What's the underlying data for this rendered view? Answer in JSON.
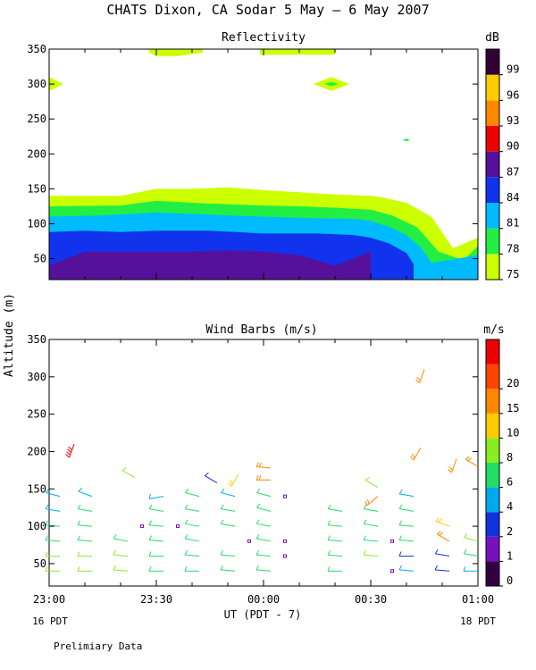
{
  "title": "CHATS Dixon, CA  Sodar    5 May –  6 May 2007",
  "footer_note": "Prelimiary Data",
  "ylabel": "Altitude (m)",
  "xlabel": "UT  (PDT - 7)",
  "x_ticks": [
    "23:00",
    "23:30",
    "00:00",
    "00:30",
    "01:00"
  ],
  "x_start_note": "16 PDT",
  "x_end_note": "18 PDT",
  "chart_data": [
    {
      "type": "heatmap",
      "title": "Reflectivity",
      "x_range_minutes": [
        0,
        120
      ],
      "ylim": [
        20,
        350
      ],
      "y_ticks": [
        50,
        100,
        150,
        200,
        250,
        300,
        350
      ],
      "colorbar": {
        "unit": "dB",
        "levels": [
          75,
          78,
          81,
          84,
          87,
          90,
          93,
          96,
          99
        ],
        "colors": [
          "#ccff00",
          "#22ee44",
          "#00bbff",
          "#1133ee",
          "#551199",
          "#ee0000",
          "#ff8800",
          "#ffcc00",
          "#330033"
        ]
      },
      "layers": [
        {
          "value": 75,
          "points": [
            [
              0,
              140
            ],
            [
              20,
              140
            ],
            [
              30,
              150
            ],
            [
              40,
              150
            ],
            [
              50,
              152
            ],
            [
              60,
              148
            ],
            [
              70,
              145
            ],
            [
              80,
              142
            ],
            [
              90,
              140
            ],
            [
              93,
              138
            ],
            [
              100,
              130
            ],
            [
              107,
              110
            ],
            [
              113,
              65
            ],
            [
              120,
              80
            ],
            [
              120,
              20
            ],
            [
              0,
              20
            ]
          ]
        },
        {
          "value": 78,
          "points": [
            [
              0,
              125
            ],
            [
              20,
              126
            ],
            [
              30,
              133
            ],
            [
              40,
              130
            ],
            [
              50,
              128
            ],
            [
              60,
              126
            ],
            [
              70,
              125
            ],
            [
              80,
              123
            ],
            [
              90,
              120
            ],
            [
              96,
              112
            ],
            [
              103,
              95
            ],
            [
              109,
              60
            ],
            [
              116,
              48
            ],
            [
              120,
              68
            ],
            [
              120,
              20
            ],
            [
              0,
              20
            ]
          ]
        },
        {
          "value": 81,
          "points": [
            [
              0,
              110
            ],
            [
              15,
              112
            ],
            [
              30,
              116
            ],
            [
              45,
              113
            ],
            [
              60,
              110
            ],
            [
              75,
              108
            ],
            [
              85,
              107
            ],
            [
              90,
              104
            ],
            [
              95,
              96
            ],
            [
              100,
              84
            ],
            [
              104,
              66
            ],
            [
              107,
              44
            ],
            [
              120,
              55
            ],
            [
              120,
              20
            ],
            [
              0,
              20
            ]
          ]
        },
        {
          "value": 84,
          "points": [
            [
              0,
              88
            ],
            [
              10,
              90
            ],
            [
              20,
              88
            ],
            [
              30,
              90
            ],
            [
              45,
              90
            ],
            [
              60,
              86
            ],
            [
              75,
              86
            ],
            [
              85,
              84
            ],
            [
              90,
              80
            ],
            [
              95,
              72
            ],
            [
              100,
              58
            ],
            [
              102,
              42
            ],
            [
              102,
              20
            ],
            [
              0,
              20
            ]
          ]
        },
        {
          "value": 87,
          "points": [
            [
              0,
              40
            ],
            [
              10,
              60
            ],
            [
              20,
              60
            ],
            [
              30,
              60
            ],
            [
              40,
              60
            ],
            [
              50,
              62
            ],
            [
              60,
              60
            ],
            [
              70,
              55
            ],
            [
              80,
              40
            ],
            [
              90,
              60
            ],
            [
              90,
              20
            ],
            [
              0,
              20
            ]
          ]
        },
        {
          "value": 75,
          "points": [
            [
              28,
              345
            ],
            [
              30,
              340
            ],
            [
              36,
              340
            ],
            [
              43,
              345
            ],
            [
              43,
              350
            ],
            [
              28,
              350
            ]
          ]
        },
        {
          "value": 75,
          "points": [
            [
              59,
              350
            ],
            [
              80,
              350
            ],
            [
              80,
              342
            ],
            [
              59,
              342
            ]
          ]
        },
        {
          "value": 75,
          "points": [
            [
              0,
              310
            ],
            [
              4,
              300
            ],
            [
              0,
              290
            ]
          ]
        },
        {
          "value": 75,
          "points": [
            [
              74,
              300
            ],
            [
              79,
              310
            ],
            [
              84,
              300
            ],
            [
              79,
              290
            ]
          ]
        },
        {
          "value": 78,
          "points": [
            [
              77,
              300
            ],
            [
              79,
              303
            ],
            [
              81,
              300
            ],
            [
              79,
              297
            ]
          ]
        },
        {
          "value": 78,
          "points": [
            [
              99,
              220
            ],
            [
              100,
              222
            ],
            [
              101,
              220
            ],
            [
              100,
              218
            ]
          ]
        }
      ]
    },
    {
      "type": "wind_barbs",
      "title": "Wind Barbs (m/s)",
      "x_range_minutes": [
        0,
        120
      ],
      "ylim": [
        20,
        350
      ],
      "y_ticks": [
        50,
        100,
        150,
        200,
        250,
        300,
        350
      ],
      "colorbar": {
        "unit": "m/s",
        "levels": [
          0,
          1,
          2,
          4,
          6,
          8,
          10,
          15,
          20
        ],
        "colors": [
          "#330044",
          "#7711bb",
          "#1133dd",
          "#00aaee",
          "#22dd66",
          "#88ee22",
          "#ffcc00",
          "#ff8800",
          "#ff4400",
          "#ee0000"
        ]
      },
      "barbs": [
        {
          "t": 3,
          "z": 40,
          "speed": 6,
          "dir": 270
        },
        {
          "t": 3,
          "z": 60,
          "speed": 6,
          "dir": 270
        },
        {
          "t": 3,
          "z": 80,
          "speed": 5,
          "dir": 275
        },
        {
          "t": 3,
          "z": 100,
          "speed": 4,
          "dir": 275
        },
        {
          "t": 3,
          "z": 120,
          "speed": 2,
          "dir": 280
        },
        {
          "t": 3,
          "z": 140,
          "speed": 3,
          "dir": 285
        },
        {
          "t": 12,
          "z": 40,
          "speed": 6,
          "dir": 270
        },
        {
          "t": 12,
          "z": 60,
          "speed": 6,
          "dir": 270
        },
        {
          "t": 12,
          "z": 80,
          "speed": 5,
          "dir": 275
        },
        {
          "t": 12,
          "z": 100,
          "speed": 4,
          "dir": 275
        },
        {
          "t": 12,
          "z": 120,
          "speed": 5,
          "dir": 280
        },
        {
          "t": 12,
          "z": 140,
          "speed": 3,
          "dir": 290
        },
        {
          "t": 7,
          "z": 210,
          "speed": 22,
          "dir": 200
        },
        {
          "t": 22,
          "z": 40,
          "speed": 6,
          "dir": 275
        },
        {
          "t": 22,
          "z": 60,
          "speed": 6,
          "dir": 275
        },
        {
          "t": 22,
          "z": 80,
          "speed": 4,
          "dir": 280
        },
        {
          "t": 24,
          "z": 165,
          "speed": 7,
          "dir": 300
        },
        {
          "t": 32,
          "z": 40,
          "speed": 5,
          "dir": 270
        },
        {
          "t": 32,
          "z": 60,
          "speed": 5,
          "dir": 270
        },
        {
          "t": 32,
          "z": 80,
          "speed": 4,
          "dir": 275
        },
        {
          "t": 32,
          "z": 100,
          "speed": 5,
          "dir": 275
        },
        {
          "t": 32,
          "z": 120,
          "speed": 5,
          "dir": 280
        },
        {
          "t": 32,
          "z": 140,
          "speed": 3,
          "dir": 260
        },
        {
          "t": 42,
          "z": 40,
          "speed": 4,
          "dir": 270
        },
        {
          "t": 42,
          "z": 60,
          "speed": 5,
          "dir": 275
        },
        {
          "t": 42,
          "z": 80,
          "speed": 4,
          "dir": 280
        },
        {
          "t": 42,
          "z": 100,
          "speed": 5,
          "dir": 280
        },
        {
          "t": 42,
          "z": 120,
          "speed": 5,
          "dir": 280
        },
        {
          "t": 42,
          "z": 140,
          "speed": 4,
          "dir": 285
        },
        {
          "t": 47,
          "z": 158,
          "speed": 1,
          "dir": 300
        },
        {
          "t": 52,
          "z": 40,
          "speed": 4,
          "dir": 275
        },
        {
          "t": 52,
          "z": 60,
          "speed": 5,
          "dir": 275
        },
        {
          "t": 52,
          "z": 100,
          "speed": 5,
          "dir": 280
        },
        {
          "t": 52,
          "z": 120,
          "speed": 4,
          "dir": 280
        },
        {
          "t": 52,
          "z": 140,
          "speed": 3,
          "dir": 285
        },
        {
          "t": 53,
          "z": 170,
          "speed": 8,
          "dir": 210
        },
        {
          "t": 62,
          "z": 40,
          "speed": 4,
          "dir": 275
        },
        {
          "t": 62,
          "z": 60,
          "speed": 5,
          "dir": 275
        },
        {
          "t": 62,
          "z": 80,
          "speed": 5,
          "dir": 280
        },
        {
          "t": 62,
          "z": 100,
          "speed": 5,
          "dir": 280
        },
        {
          "t": 62,
          "z": 120,
          "speed": 5,
          "dir": 285
        },
        {
          "t": 62,
          "z": 140,
          "speed": 4,
          "dir": 285
        },
        {
          "t": 62,
          "z": 162,
          "speed": 10,
          "dir": 270
        },
        {
          "t": 62,
          "z": 178,
          "speed": 12,
          "dir": 275
        },
        {
          "t": 82,
          "z": 40,
          "speed": 4,
          "dir": 270
        },
        {
          "t": 82,
          "z": 60,
          "speed": 4,
          "dir": 275
        },
        {
          "t": 82,
          "z": 80,
          "speed": 5,
          "dir": 275
        },
        {
          "t": 82,
          "z": 100,
          "speed": 5,
          "dir": 275
        },
        {
          "t": 82,
          "z": 120,
          "speed": 5,
          "dir": 280
        },
        {
          "t": 92,
          "z": 60,
          "speed": 6,
          "dir": 275
        },
        {
          "t": 92,
          "z": 80,
          "speed": 5,
          "dir": 275
        },
        {
          "t": 92,
          "z": 100,
          "speed": 5,
          "dir": 280
        },
        {
          "t": 92,
          "z": 120,
          "speed": 4,
          "dir": 280
        },
        {
          "t": 92,
          "z": 140,
          "speed": 10,
          "dir": 230
        },
        {
          "t": 92,
          "z": 152,
          "speed": 7,
          "dir": 300
        },
        {
          "t": 102,
          "z": 40,
          "speed": 2,
          "dir": 275
        },
        {
          "t": 102,
          "z": 60,
          "speed": 1,
          "dir": 270
        },
        {
          "t": 102,
          "z": 80,
          "speed": 5,
          "dir": 275
        },
        {
          "t": 102,
          "z": 100,
          "speed": 4,
          "dir": 275
        },
        {
          "t": 102,
          "z": 120,
          "speed": 5,
          "dir": 280
        },
        {
          "t": 102,
          "z": 140,
          "speed": 3,
          "dir": 280
        },
        {
          "t": 104,
          "z": 205,
          "speed": 12,
          "dir": 210
        },
        {
          "t": 105,
          "z": 310,
          "speed": 12,
          "dir": 200
        },
        {
          "t": 112,
          "z": 40,
          "speed": 1,
          "dir": 275
        },
        {
          "t": 112,
          "z": 60,
          "speed": 1,
          "dir": 280
        },
        {
          "t": 112,
          "z": 80,
          "speed": 10,
          "dir": 300
        },
        {
          "t": 112,
          "z": 100,
          "speed": 8,
          "dir": 290
        },
        {
          "t": 114,
          "z": 190,
          "speed": 12,
          "dir": 200
        },
        {
          "t": 120,
          "z": 40,
          "speed": 2,
          "dir": 270
        },
        {
          "t": 120,
          "z": 60,
          "speed": 5,
          "dir": 280
        },
        {
          "t": 120,
          "z": 80,
          "speed": 6,
          "dir": 285
        },
        {
          "t": 120,
          "z": 180,
          "speed": 10,
          "dir": 300
        }
      ],
      "calm_points": [
        {
          "t": 26,
          "z": 100
        },
        {
          "t": 36,
          "z": 100
        },
        {
          "t": 56,
          "z": 80
        },
        {
          "t": 66,
          "z": 80
        },
        {
          "t": 66,
          "z": 60
        },
        {
          "t": 66,
          "z": 140
        },
        {
          "t": 96,
          "z": 80
        },
        {
          "t": 96,
          "z": 40
        }
      ]
    }
  ]
}
